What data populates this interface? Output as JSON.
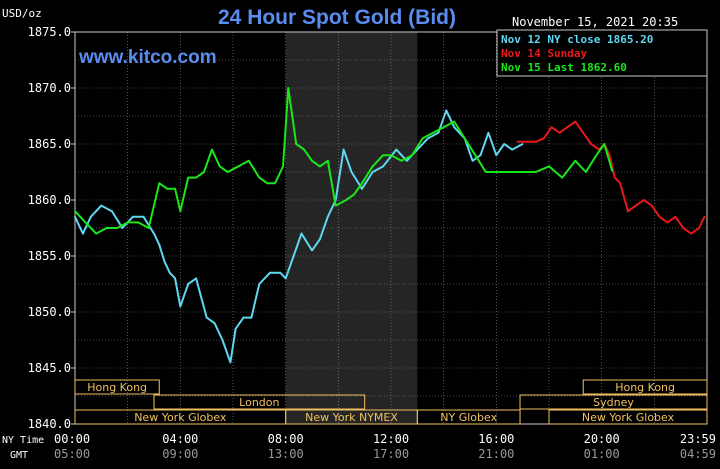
{
  "chart_data": {
    "type": "line",
    "title": "24 Hour Spot Gold (Bid)",
    "watermark": "www.kitco.com",
    "timestamp": "November 15, 2021 20:35",
    "ylabel": "USD/oz",
    "ylim": [
      1840,
      1875
    ],
    "y_ticks": [
      "1875.0",
      "1870.0",
      "1865.0",
      "1860.0",
      "1855.0",
      "1850.0",
      "1845.0",
      "1840.0"
    ],
    "y_tick_values": [
      1875,
      1870,
      1865,
      1860,
      1855,
      1850,
      1845,
      1840
    ],
    "xlim": [
      0,
      24
    ],
    "x_ticks_ny": [
      "00:00",
      "04:00",
      "08:00",
      "12:00",
      "16:00",
      "20:00",
      "23:59"
    ],
    "x_ticks_ny_values": [
      0,
      4,
      8,
      12,
      16,
      20,
      24
    ],
    "x_ticks_gmt": [
      "05:00",
      "09:00",
      "13:00",
      "17:00",
      "21:00",
      "01:00",
      "04:59"
    ],
    "x_label_ny": "NY Time",
    "x_label_gmt": "GMT",
    "grid": true,
    "shaded_ranges": [
      [
        8,
        13
      ]
    ],
    "legend_position": "top-right",
    "legend": [
      {
        "label": "Nov 12 NY close 1865.20",
        "color": "#5fd7f0"
      },
      {
        "label": "Nov 14 Sunday",
        "color": "#e81818"
      },
      {
        "label": "Nov 15 Last 1862.60",
        "color": "#18e818"
      }
    ],
    "series": [
      {
        "name": "Nov 12 NY close 1865.20",
        "color": "#5fd7f0",
        "x": [
          0,
          0.3,
          0.6,
          1.0,
          1.4,
          1.8,
          2.2,
          2.6,
          3.0,
          3.2,
          3.4,
          3.6,
          3.8,
          4.0,
          4.3,
          4.6,
          5.0,
          5.3,
          5.6,
          5.9,
          6.1,
          6.4,
          6.7,
          7.0,
          7.4,
          7.8,
          8.0,
          8.3,
          8.6,
          9.0,
          9.3,
          9.6,
          9.9,
          10.2,
          10.5,
          10.9,
          11.3,
          11.7,
          12.2,
          12.6,
          13.0,
          13.4,
          13.8,
          14.1,
          14.4,
          14.8,
          15.1,
          15.4,
          15.7,
          16.0,
          16.3,
          16.6,
          17.0
        ],
        "y": [
          1858.5,
          1857.0,
          1858.5,
          1859.5,
          1859.0,
          1857.5,
          1858.5,
          1858.5,
          1857.0,
          1856.0,
          1854.5,
          1853.5,
          1853.0,
          1850.5,
          1852.5,
          1853.0,
          1849.5,
          1849.0,
          1847.5,
          1845.5,
          1848.5,
          1849.5,
          1849.5,
          1852.5,
          1853.5,
          1853.5,
          1853.0,
          1855.0,
          1857.0,
          1855.5,
          1856.5,
          1858.5,
          1860.0,
          1864.5,
          1862.5,
          1861.0,
          1862.5,
          1863.0,
          1864.5,
          1863.5,
          1864.5,
          1865.5,
          1866.0,
          1868.0,
          1866.5,
          1865.5,
          1863.5,
          1864.0,
          1866.0,
          1864.0,
          1865.0,
          1864.5,
          1865.0
        ]
      },
      {
        "name": "Nov 14 Sunday",
        "color": "#e81818",
        "x": [
          16.8,
          17.2,
          17.5,
          17.8,
          18.1,
          18.4,
          18.7,
          19.0,
          19.3,
          19.6,
          19.9,
          20.1,
          20.3,
          20.5,
          20.7,
          21.0,
          21.3,
          21.6,
          21.9,
          22.2,
          22.5,
          22.8,
          23.1,
          23.4,
          23.7,
          23.9
        ],
        "y": [
          1865.2,
          1865.2,
          1865.2,
          1865.5,
          1866.5,
          1866.0,
          1866.5,
          1867.0,
          1866.0,
          1865.0,
          1864.5,
          1865.0,
          1864.0,
          1862.0,
          1861.5,
          1859.0,
          1859.5,
          1860.0,
          1859.5,
          1858.5,
          1858.0,
          1858.5,
          1857.5,
          1857.0,
          1857.5,
          1858.5
        ]
      },
      {
        "name": "Nov 15 Last 1862.60",
        "color": "#18e818",
        "x": [
          0,
          0.4,
          0.8,
          1.2,
          1.6,
          2.0,
          2.4,
          2.8,
          3.2,
          3.5,
          3.8,
          4.0,
          4.3,
          4.6,
          4.9,
          5.2,
          5.5,
          5.8,
          6.2,
          6.6,
          7.0,
          7.3,
          7.6,
          7.9,
          8.1,
          8.4,
          8.7,
          9.0,
          9.3,
          9.6,
          9.9,
          10.3,
          10.6,
          10.9,
          11.3,
          11.7,
          12.0,
          12.4,
          12.8,
          13.2,
          13.6,
          14.0,
          14.4,
          14.8,
          15.2,
          15.6,
          16.0,
          16.5,
          17.0,
          17.5,
          18.0,
          18.5,
          19.0,
          19.4,
          19.8,
          20.1,
          20.4
        ],
        "y": [
          1859.0,
          1858.0,
          1857.0,
          1857.5,
          1857.5,
          1858.0,
          1858.0,
          1857.5,
          1861.5,
          1861.0,
          1861.0,
          1859.0,
          1862.0,
          1862.0,
          1862.5,
          1864.5,
          1863.0,
          1862.5,
          1863.0,
          1863.5,
          1862.0,
          1861.5,
          1861.5,
          1863.0,
          1870.0,
          1865.0,
          1864.5,
          1863.5,
          1863.0,
          1863.5,
          1859.5,
          1860.0,
          1860.5,
          1861.5,
          1863.0,
          1864.0,
          1864.0,
          1863.5,
          1864.0,
          1865.5,
          1866.0,
          1866.5,
          1867.0,
          1865.5,
          1864.0,
          1862.5,
          1862.5,
          1862.5,
          1862.5,
          1862.5,
          1863.0,
          1862.0,
          1863.5,
          1862.5,
          1864.0,
          1865.0,
          1862.6
        ]
      }
    ],
    "session_bars": [
      {
        "label": "Hong Kong",
        "row": 1,
        "start": 0,
        "end": 3.2
      },
      {
        "label": "London",
        "row": 2,
        "start": 3.0,
        "end": 11.0
      },
      {
        "label": "New York Globex",
        "row": 3,
        "start": 0,
        "end": 8.0
      },
      {
        "label": "New York NYMEX",
        "row": 3,
        "start": 8.0,
        "end": 13.0
      },
      {
        "label": "NY Globex",
        "row": 3,
        "start": 13.0,
        "end": 16.9
      },
      {
        "label": "Hong Kong",
        "row": 1,
        "start": 19.3,
        "end": 24.0
      },
      {
        "label": "Sydney",
        "row": 2,
        "start": 16.9,
        "end": 24.0
      },
      {
        "label": "New York Globex",
        "row": 3,
        "start": 18.0,
        "end": 24.0
      }
    ]
  }
}
